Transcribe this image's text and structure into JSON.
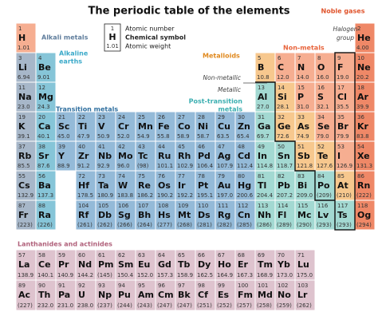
{
  "title": "The periodic table of the elements",
  "key": {
    "n": 1,
    "s": "H",
    "w": "1.01",
    "labels": [
      "Atomic number",
      "Chemical symbol",
      "Atomic weight"
    ]
  },
  "labels": {
    "alkali": {
      "text": "Alkali metals",
      "color": "#5f7d9c"
    },
    "alkaline": {
      "lines": [
        "Alkaline",
        "earths"
      ],
      "color": "#3aa9c9"
    },
    "transition": {
      "text": "Transition metals",
      "color": "#2f6f9f"
    },
    "post_transition": {
      "lines": [
        "Post-transition",
        "metals"
      ],
      "color": "#3aaeb0"
    },
    "metalloids": {
      "text": "Metalloids",
      "color": "#e0891e"
    },
    "nonmetals": {
      "text": "Non-metals",
      "color": "#e8643c"
    },
    "noble": {
      "text": "Noble gases",
      "color": "#e0532b"
    },
    "halogen": {
      "lines": [
        "Halogen",
        "group"
      ]
    },
    "nonmetallic": "Non-metallic",
    "metallic": "Metallic",
    "f_block": {
      "text": "Lanthanides and actinides",
      "color": "#b0607a"
    }
  },
  "rows": [
    [
      {
        "n": 1,
        "s": "H",
        "w": "1.01",
        "c": "#f6ae91"
      },
      null,
      null,
      null,
      null,
      null,
      null,
      null,
      null,
      null,
      null,
      null,
      null,
      null,
      null,
      null,
      null,
      {
        "n": 2,
        "s": "He",
        "w": "4.00",
        "c": "#ef8867"
      }
    ],
    [
      {
        "n": 3,
        "s": "Li",
        "w": "6.94",
        "c": "#a7b7c9"
      },
      {
        "n": 4,
        "s": "Be",
        "w": "9.01",
        "c": "#86c5d8"
      },
      null,
      null,
      null,
      null,
      null,
      null,
      null,
      null,
      null,
      null,
      {
        "n": 5,
        "s": "B",
        "w": "10.8",
        "c": "#f7c88e"
      },
      {
        "n": 6,
        "s": "C",
        "w": "12.0",
        "c": "#f6ae91"
      },
      {
        "n": 7,
        "s": "N",
        "w": "14.0",
        "c": "#f6ae91"
      },
      {
        "n": 8,
        "s": "O",
        "w": "16.0",
        "c": "#f6ae91"
      },
      {
        "n": 9,
        "s": "F",
        "w": "19.0",
        "c": "#f6ae91"
      },
      {
        "n": 10,
        "s": "Ne",
        "w": "20.2",
        "c": "#ef8867"
      }
    ],
    [
      {
        "n": 11,
        "s": "Na",
        "w": "23.0",
        "c": "#a7b7c9"
      },
      {
        "n": 12,
        "s": "Mg",
        "w": "24.3",
        "c": "#86c5d8"
      },
      null,
      null,
      null,
      null,
      null,
      null,
      null,
      null,
      null,
      null,
      {
        "n": 13,
        "s": "Al",
        "w": "27.0",
        "c": "#a3d9d2"
      },
      {
        "n": 14,
        "s": "Si",
        "w": "28.1",
        "c": "#f7c88e"
      },
      {
        "n": 15,
        "s": "P",
        "w": "31.0",
        "c": "#f6ae91"
      },
      {
        "n": 16,
        "s": "S",
        "w": "32.1",
        "c": "#f6ae91"
      },
      {
        "n": 17,
        "s": "Cl",
        "w": "35.5",
        "c": "#f6ae91"
      },
      {
        "n": 18,
        "s": "Ar",
        "w": "39.9",
        "c": "#ef8867"
      }
    ],
    [
      {
        "n": 19,
        "s": "K",
        "w": "39.1",
        "c": "#a7b7c9"
      },
      {
        "n": 20,
        "s": "Ca",
        "w": "40.1",
        "c": "#86c5d8"
      },
      {
        "n": 21,
        "s": "Sc",
        "w": "45.0",
        "c": "#94bad8"
      },
      {
        "n": 22,
        "s": "Ti",
        "w": "47.9",
        "c": "#94bad8"
      },
      {
        "n": 23,
        "s": "V",
        "w": "50.9",
        "c": "#94bad8"
      },
      {
        "n": 24,
        "s": "Cr",
        "w": "52.0",
        "c": "#94bad8"
      },
      {
        "n": 25,
        "s": "Mn",
        "w": "54.9",
        "c": "#94bad8"
      },
      {
        "n": 26,
        "s": "Fe",
        "w": "55.8",
        "c": "#94bad8"
      },
      {
        "n": 27,
        "s": "Co",
        "w": "58.9",
        "c": "#94bad8"
      },
      {
        "n": 28,
        "s": "Ni",
        "w": "58.7",
        "c": "#94bad8"
      },
      {
        "n": 29,
        "s": "Cu",
        "w": "63.5",
        "c": "#94bad8"
      },
      {
        "n": 30,
        "s": "Zn",
        "w": "65.4",
        "c": "#94bad8"
      },
      {
        "n": 31,
        "s": "Ga",
        "w": "69.7",
        "c": "#a3d9d2"
      },
      {
        "n": 32,
        "s": "Ge",
        "w": "72.6",
        "c": "#f7c88e"
      },
      {
        "n": 33,
        "s": "As",
        "w": "74.9",
        "c": "#f7c88e"
      },
      {
        "n": 34,
        "s": "Se",
        "w": "79.0",
        "c": "#f6ae91"
      },
      {
        "n": 35,
        "s": "Br",
        "w": "79.9",
        "c": "#f6ae91"
      },
      {
        "n": 36,
        "s": "Kr",
        "w": "83.8",
        "c": "#ef8867"
      }
    ],
    [
      {
        "n": 37,
        "s": "Rb",
        "w": "85.5",
        "c": "#a7b7c9"
      },
      {
        "n": 38,
        "s": "Sr",
        "w": "87.6",
        "c": "#86c5d8"
      },
      {
        "n": 39,
        "s": "Y",
        "w": "88.9",
        "c": "#94bad8"
      },
      {
        "n": 40,
        "s": "Zr",
        "w": "91.2",
        "c": "#94bad8"
      },
      {
        "n": 41,
        "s": "Nb",
        "w": "92.9",
        "c": "#94bad8"
      },
      {
        "n": 42,
        "s": "Mo",
        "w": "96.0",
        "c": "#94bad8"
      },
      {
        "n": 43,
        "s": "Tc",
        "w": "(98)",
        "c": "#94bad8"
      },
      {
        "n": 44,
        "s": "Ru",
        "w": "101.1",
        "c": "#94bad8"
      },
      {
        "n": 45,
        "s": "Rh",
        "w": "102.9",
        "c": "#94bad8"
      },
      {
        "n": 46,
        "s": "Pd",
        "w": "106.4",
        "c": "#94bad8"
      },
      {
        "n": 47,
        "s": "Ag",
        "w": "107.9",
        "c": "#94bad8"
      },
      {
        "n": 48,
        "s": "Cd",
        "w": "112.4",
        "c": "#94bad8"
      },
      {
        "n": 49,
        "s": "In",
        "w": "114.8",
        "c": "#a3d9d2"
      },
      {
        "n": 50,
        "s": "Sn",
        "w": "118.7",
        "c": "#a3d9d2"
      },
      {
        "n": 51,
        "s": "Sb",
        "w": "121.8",
        "c": "#f7c88e"
      },
      {
        "n": 52,
        "s": "Te",
        "w": "127.6",
        "c": "#f7c88e"
      },
      {
        "n": 53,
        "s": "I",
        "w": "126.9",
        "c": "#f6ae91"
      },
      {
        "n": 54,
        "s": "Xe",
        "w": "131.3",
        "c": "#ef8867"
      }
    ],
    [
      {
        "n": 55,
        "s": "Cs",
        "w": "132.9",
        "c": "#a7b7c9"
      },
      {
        "n": 56,
        "s": "Ba",
        "w": "137.3",
        "c": "#86c5d8"
      },
      null,
      {
        "n": 72,
        "s": "Hf",
        "w": "178.5",
        "c": "#94bad8"
      },
      {
        "n": 73,
        "s": "Ta",
        "w": "180.9",
        "c": "#94bad8"
      },
      {
        "n": 74,
        "s": "W",
        "w": "183.8",
        "c": "#94bad8"
      },
      {
        "n": 75,
        "s": "Re",
        "w": "186.2",
        "c": "#94bad8"
      },
      {
        "n": 76,
        "s": "Os",
        "w": "190.2",
        "c": "#94bad8"
      },
      {
        "n": 77,
        "s": "Ir",
        "w": "192.2",
        "c": "#94bad8"
      },
      {
        "n": 78,
        "s": "Pt",
        "w": "195.1",
        "c": "#94bad8"
      },
      {
        "n": 79,
        "s": "Au",
        "w": "197.0",
        "c": "#94bad8"
      },
      {
        "n": 80,
        "s": "Hg",
        "w": "200.6",
        "c": "#94bad8"
      },
      {
        "n": 81,
        "s": "Tl",
        "w": "204.4",
        "c": "#a3d9d2"
      },
      {
        "n": 82,
        "s": "Pb",
        "w": "207.2",
        "c": "#a3d9d2"
      },
      {
        "n": 83,
        "s": "Bi",
        "w": "209.0",
        "c": "#a3d9d2"
      },
      {
        "n": 84,
        "s": "Po",
        "w": "(209)",
        "c": "#a3d9d2"
      },
      {
        "n": 85,
        "s": "At",
        "w": "(210)",
        "c": "#f7c88e"
      },
      {
        "n": 86,
        "s": "Rn",
        "w": "(222)",
        "c": "#ef8867"
      }
    ],
    [
      {
        "n": 87,
        "s": "Fr",
        "w": "(223)",
        "c": "#a7b7c9"
      },
      {
        "n": 88,
        "s": "Ra",
        "w": "(226)",
        "c": "#86c5d8"
      },
      null,
      {
        "n": 104,
        "s": "Rf",
        "w": "(261)",
        "c": "#94bad8"
      },
      {
        "n": 105,
        "s": "Db",
        "w": "(262)",
        "c": "#94bad8"
      },
      {
        "n": 106,
        "s": "Sg",
        "w": "(266)",
        "c": "#94bad8"
      },
      {
        "n": 107,
        "s": "Bh",
        "w": "(264)",
        "c": "#94bad8"
      },
      {
        "n": 108,
        "s": "Hs",
        "w": "(277)",
        "c": "#94bad8"
      },
      {
        "n": 109,
        "s": "Mt",
        "w": "(268)",
        "c": "#94bad8"
      },
      {
        "n": 110,
        "s": "Ds",
        "w": "(281)",
        "c": "#94bad8"
      },
      {
        "n": 111,
        "s": "Rg",
        "w": "(282)",
        "c": "#94bad8"
      },
      {
        "n": 112,
        "s": "Cn",
        "w": "(285)",
        "c": "#94bad8"
      },
      {
        "n": 113,
        "s": "Nh",
        "w": "(286)",
        "c": "#a3d9d2"
      },
      {
        "n": 114,
        "s": "Fl",
        "w": "(289)",
        "c": "#a3d9d2"
      },
      {
        "n": 115,
        "s": "Mc",
        "w": "(290)",
        "c": "#a3d9d2"
      },
      {
        "n": 116,
        "s": "Lv",
        "w": "(293)",
        "c": "#a3d9d2"
      },
      {
        "n": 117,
        "s": "Ts",
        "w": "(293)",
        "c": "#a3d9d2"
      },
      {
        "n": 118,
        "s": "Og",
        "w": "(294)",
        "c": "#ef8867"
      }
    ]
  ],
  "f_rows": [
    [
      {
        "n": 57,
        "s": "La",
        "w": "138.9",
        "c": "#dec3ce"
      },
      {
        "n": 58,
        "s": "Ce",
        "w": "140.1",
        "c": "#dec3ce"
      },
      {
        "n": 59,
        "s": "Pr",
        "w": "140.9",
        "c": "#dec3ce"
      },
      {
        "n": 60,
        "s": "Nd",
        "w": "144.2",
        "c": "#dec3ce"
      },
      {
        "n": 61,
        "s": "Pm",
        "w": "(145)",
        "c": "#dec3ce"
      },
      {
        "n": 62,
        "s": "Sm",
        "w": "150.4",
        "c": "#dec3ce"
      },
      {
        "n": 63,
        "s": "Eu",
        "w": "152.0",
        "c": "#dec3ce"
      },
      {
        "n": 64,
        "s": "Gd",
        "w": "157.3",
        "c": "#dec3ce"
      },
      {
        "n": 65,
        "s": "Tb",
        "w": "158.9",
        "c": "#dec3ce"
      },
      {
        "n": 66,
        "s": "Dy",
        "w": "162.5",
        "c": "#dec3ce"
      },
      {
        "n": 67,
        "s": "Ho",
        "w": "164.9",
        "c": "#dec3ce"
      },
      {
        "n": 68,
        "s": "Er",
        "w": "167.3",
        "c": "#dec3ce"
      },
      {
        "n": 69,
        "s": "Tm",
        "w": "168.9",
        "c": "#dec3ce"
      },
      {
        "n": 70,
        "s": "Yb",
        "w": "173.0",
        "c": "#dec3ce"
      },
      {
        "n": 71,
        "s": "Lu",
        "w": "175.0",
        "c": "#dec3ce"
      }
    ],
    [
      {
        "n": 89,
        "s": "Ac",
        "w": "(227)",
        "c": "#dec3ce"
      },
      {
        "n": 90,
        "s": "Th",
        "w": "232.0",
        "c": "#dec3ce"
      },
      {
        "n": 91,
        "s": "Pa",
        "w": "231.0",
        "c": "#dec3ce"
      },
      {
        "n": 92,
        "s": "U",
        "w": "238.0",
        "c": "#dec3ce"
      },
      {
        "n": 93,
        "s": "Np",
        "w": "(237)",
        "c": "#dec3ce"
      },
      {
        "n": 94,
        "s": "Pu",
        "w": "(244)",
        "c": "#dec3ce"
      },
      {
        "n": 95,
        "s": "Am",
        "w": "(243)",
        "c": "#dec3ce"
      },
      {
        "n": 96,
        "s": "Cm",
        "w": "(247)",
        "c": "#dec3ce"
      },
      {
        "n": 97,
        "s": "Bk",
        "w": "(247)",
        "c": "#dec3ce"
      },
      {
        "n": 98,
        "s": "Cf",
        "w": "(251)",
        "c": "#dec3ce"
      },
      {
        "n": 99,
        "s": "Es",
        "w": "(252)",
        "c": "#dec3ce"
      },
      {
        "n": 100,
        "s": "Fm",
        "w": "(257)",
        "c": "#dec3ce"
      },
      {
        "n": 101,
        "s": "Md",
        "w": "(258)",
        "c": "#dec3ce"
      },
      {
        "n": 102,
        "s": "No",
        "w": "(259)",
        "c": "#dec3ce"
      },
      {
        "n": 103,
        "s": "Lr",
        "w": "(262)",
        "c": "#dec3ce"
      }
    ]
  ]
}
